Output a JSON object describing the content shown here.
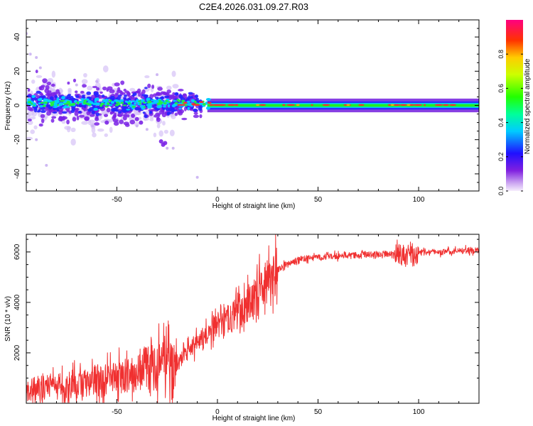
{
  "title": "C2E4.2026.031.09.27.R03",
  "colors": {
    "snr_line": "#f03030",
    "axis": "#000000",
    "background": "#ffffff"
  },
  "chart_data": [
    {
      "type": "heatmap",
      "name": "spectrogram",
      "xlabel": "Height of straight line (km)",
      "ylabel": "Frequency (Hz)",
      "xlim": [
        -95,
        130
      ],
      "ylim": [
        -50,
        50
      ],
      "xticks": [
        -50,
        0,
        50,
        100
      ],
      "yticks": [
        -40,
        -20,
        0,
        20,
        40
      ],
      "description_of_values": "normalized spectral amplitude centered near 0 Hz; broad scatter (about -25 to +15 Hz) for heights below -20 km, narrow band within +/-3 Hz above 0 km",
      "colorbar": {
        "label": "Normalized spectral amplitude",
        "range": [
          0.0,
          1.0
        ],
        "ticks": [
          "0.0",
          "0.2",
          "0.4",
          "0.6",
          "0.8"
        ],
        "tick_values": [
          0.0,
          0.2,
          0.4,
          0.6,
          0.8
        ]
      }
    },
    {
      "type": "line",
      "name": "snr",
      "xlabel": "Height of straight line (km)",
      "ylabel": "SNR (10 * v/v)",
      "xlim": [
        -95,
        130
      ],
      "ylim": [
        0,
        6700
      ],
      "xticks": [
        -50,
        0,
        50,
        100
      ],
      "yticks": [
        2000,
        4000,
        6000
      ],
      "series": [
        {
          "name": "SNR",
          "x": [
            -95,
            -90,
            -85,
            -80,
            -75,
            -70,
            -65,
            -60,
            -55,
            -50,
            -45,
            -40,
            -35,
            -30,
            -25,
            -20,
            -15,
            -10,
            -5,
            0,
            5,
            10,
            15,
            20,
            25,
            30,
            35,
            40,
            45,
            50,
            55,
            60,
            65,
            70,
            75,
            80,
            85,
            90,
            95,
            100,
            105,
            110,
            115,
            120,
            125,
            130
          ],
          "values": [
            450,
            600,
            700,
            650,
            700,
            750,
            800,
            850,
            900,
            950,
            1100,
            1250,
            1400,
            1500,
            1550,
            1600,
            2000,
            2350,
            2700,
            3000,
            3300,
            3600,
            3950,
            4400,
            4850,
            5300,
            5550,
            5700,
            5750,
            5800,
            5820,
            5840,
            5860,
            5880,
            5900,
            5920,
            5940,
            5950,
            5950,
            5960,
            5980,
            6000,
            6020,
            6040,
            6060,
            6080
          ]
        }
      ]
    }
  ]
}
